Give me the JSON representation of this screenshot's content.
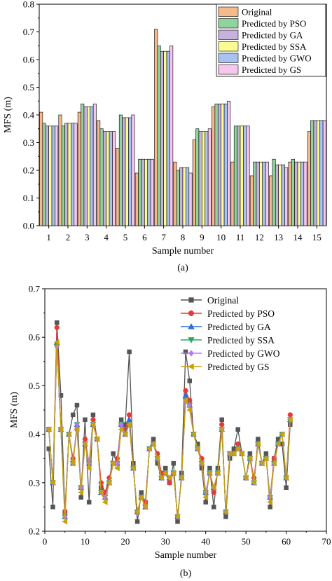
{
  "chart_data": [
    {
      "type": "bar",
      "panel_label": "(a)",
      "xlabel": "Sample number",
      "ylabel": "MFS (m)",
      "ylim": [
        0,
        0.8
      ],
      "yticks": [
        0.0,
        0.1,
        0.2,
        0.3,
        0.4,
        0.5,
        0.6,
        0.7,
        0.8
      ],
      "categories": [
        "1",
        "2",
        "3",
        "4",
        "5",
        "6",
        "7",
        "8",
        "9",
        "10",
        "11",
        "12",
        "13",
        "14",
        "15"
      ],
      "legend_position": "top-right",
      "series": [
        {
          "name": "Original",
          "color": "#f5b98c",
          "values": [
            0.41,
            0.4,
            0.41,
            0.38,
            0.28,
            0.19,
            0.71,
            0.23,
            0.31,
            0.43,
            0.23,
            0.18,
            0.18,
            0.23,
            0.34
          ]
        },
        {
          "name": "Predicted by PSO",
          "color": "#8fd49b",
          "values": [
            0.37,
            0.36,
            0.44,
            0.35,
            0.4,
            0.24,
            0.65,
            0.2,
            0.35,
            0.44,
            0.36,
            0.23,
            0.24,
            0.24,
            0.38
          ]
        },
        {
          "name": "Predicted by GA",
          "color": "#c7b1dd",
          "values": [
            0.36,
            0.37,
            0.43,
            0.34,
            0.39,
            0.24,
            0.63,
            0.21,
            0.34,
            0.44,
            0.36,
            0.23,
            0.22,
            0.23,
            0.38
          ]
        },
        {
          "name": "Predicted by SSA",
          "color": "#fbfb94",
          "values": [
            0.36,
            0.37,
            0.43,
            0.34,
            0.39,
            0.24,
            0.63,
            0.21,
            0.34,
            0.44,
            0.36,
            0.23,
            0.22,
            0.23,
            0.38
          ]
        },
        {
          "name": "Predicted by GWO",
          "color": "#a8c3f2",
          "values": [
            0.36,
            0.37,
            0.43,
            0.34,
            0.39,
            0.24,
            0.63,
            0.21,
            0.34,
            0.44,
            0.36,
            0.23,
            0.22,
            0.23,
            0.38
          ]
        },
        {
          "name": "Predicted by GS",
          "color": "#f7c6ee",
          "values": [
            0.36,
            0.37,
            0.44,
            0.34,
            0.4,
            0.24,
            0.65,
            0.19,
            0.35,
            0.45,
            0.36,
            0.23,
            0.21,
            0.23,
            0.38
          ]
        }
      ]
    },
    {
      "type": "line",
      "panel_label": "(b)",
      "xlabel": "Sample number",
      "ylabel": "MFS (m)",
      "xlim": [
        0,
        70
      ],
      "ylim": [
        0.2,
        0.7
      ],
      "xticks": [
        0,
        10,
        20,
        30,
        40,
        50,
        60,
        70
      ],
      "yticks": [
        0.2,
        0.3,
        0.4,
        0.5,
        0.6,
        0.7
      ],
      "legend_position": "top-right",
      "x": [
        1,
        2,
        3,
        4,
        5,
        6,
        7,
        8,
        9,
        10,
        11,
        12,
        13,
        14,
        15,
        16,
        17,
        18,
        19,
        20,
        21,
        22,
        23,
        24,
        25,
        26,
        27,
        28,
        29,
        30,
        31,
        32,
        33,
        34,
        35,
        36,
        37,
        38,
        39,
        40,
        41,
        42,
        43,
        44,
        45,
        46,
        47,
        48,
        49,
        50,
        51,
        52,
        53,
        54,
        55,
        56,
        57,
        58,
        59,
        60,
        61
      ],
      "series": [
        {
          "name": "Original",
          "color": "#555555",
          "marker": "square",
          "values": [
            0.37,
            0.25,
            0.63,
            0.48,
            0.24,
            0.4,
            0.44,
            0.46,
            0.27,
            0.43,
            0.26,
            0.44,
            0.39,
            0.29,
            0.28,
            0.3,
            0.36,
            0.34,
            0.43,
            0.42,
            0.57,
            0.34,
            0.22,
            0.28,
            0.26,
            0.37,
            0.39,
            0.34,
            0.31,
            0.33,
            0.3,
            0.34,
            0.22,
            0.32,
            0.57,
            0.51,
            0.4,
            0.38,
            0.33,
            0.26,
            0.33,
            0.25,
            0.33,
            0.43,
            0.23,
            0.35,
            0.37,
            0.41,
            0.36,
            0.31,
            0.36,
            0.3,
            0.39,
            0.34,
            0.36,
            0.25,
            0.35,
            0.39,
            0.38,
            0.29,
            0.42
          ]
        },
        {
          "name": "Predicted by PSO",
          "color": "#e8393a",
          "marker": "circle",
          "values": [
            0.41,
            0.3,
            0.62,
            0.41,
            0.24,
            0.4,
            0.35,
            0.41,
            0.29,
            0.39,
            0.34,
            0.43,
            0.39,
            0.3,
            0.28,
            0.31,
            0.34,
            0.35,
            0.42,
            0.41,
            0.44,
            0.33,
            0.24,
            0.27,
            0.26,
            0.37,
            0.38,
            0.36,
            0.32,
            0.32,
            0.3,
            0.32,
            0.23,
            0.31,
            0.49,
            0.47,
            0.4,
            0.37,
            0.35,
            0.28,
            0.32,
            0.28,
            0.32,
            0.42,
            0.24,
            0.36,
            0.36,
            0.38,
            0.36,
            0.31,
            0.35,
            0.31,
            0.38,
            0.34,
            0.35,
            0.27,
            0.35,
            0.38,
            0.4,
            0.31,
            0.44
          ]
        },
        {
          "name": "Predicted by GA",
          "color": "#2b6fd6",
          "marker": "triangle-up",
          "values": [
            0.41,
            0.3,
            0.59,
            0.41,
            0.23,
            0.4,
            0.34,
            0.42,
            0.29,
            0.38,
            0.34,
            0.42,
            0.39,
            0.28,
            0.27,
            0.3,
            0.34,
            0.34,
            0.42,
            0.4,
            0.43,
            0.33,
            0.24,
            0.27,
            0.25,
            0.37,
            0.38,
            0.35,
            0.31,
            0.32,
            0.31,
            0.32,
            0.23,
            0.31,
            0.48,
            0.46,
            0.4,
            0.37,
            0.34,
            0.28,
            0.32,
            0.29,
            0.32,
            0.41,
            0.24,
            0.36,
            0.36,
            0.37,
            0.36,
            0.31,
            0.35,
            0.3,
            0.38,
            0.34,
            0.35,
            0.27,
            0.34,
            0.38,
            0.4,
            0.31,
            0.43
          ]
        },
        {
          "name": "Predicted by SSA",
          "color": "#28a85a",
          "marker": "triangle-down",
          "values": [
            0.41,
            0.3,
            0.58,
            0.41,
            0.23,
            0.4,
            0.34,
            0.42,
            0.29,
            0.38,
            0.34,
            0.42,
            0.39,
            0.28,
            0.27,
            0.3,
            0.34,
            0.34,
            0.42,
            0.4,
            0.42,
            0.33,
            0.24,
            0.27,
            0.25,
            0.37,
            0.38,
            0.35,
            0.31,
            0.32,
            0.31,
            0.32,
            0.23,
            0.31,
            0.47,
            0.46,
            0.4,
            0.37,
            0.34,
            0.28,
            0.32,
            0.29,
            0.32,
            0.41,
            0.24,
            0.36,
            0.36,
            0.37,
            0.36,
            0.31,
            0.35,
            0.3,
            0.38,
            0.34,
            0.35,
            0.27,
            0.34,
            0.38,
            0.4,
            0.31,
            0.43
          ]
        },
        {
          "name": "Predicted by GWO",
          "color": "#b57bf0",
          "marker": "diamond",
          "values": [
            0.41,
            0.3,
            0.58,
            0.41,
            0.23,
            0.4,
            0.34,
            0.42,
            0.29,
            0.38,
            0.34,
            0.42,
            0.39,
            0.28,
            0.27,
            0.3,
            0.34,
            0.34,
            0.42,
            0.4,
            0.42,
            0.33,
            0.24,
            0.27,
            0.25,
            0.37,
            0.38,
            0.35,
            0.31,
            0.32,
            0.31,
            0.32,
            0.23,
            0.31,
            0.47,
            0.46,
            0.4,
            0.37,
            0.34,
            0.28,
            0.32,
            0.29,
            0.32,
            0.41,
            0.24,
            0.36,
            0.36,
            0.37,
            0.36,
            0.31,
            0.35,
            0.3,
            0.38,
            0.34,
            0.35,
            0.27,
            0.34,
            0.38,
            0.4,
            0.31,
            0.43
          ]
        },
        {
          "name": "Predicted by GS",
          "color": "#c9a10a",
          "marker": "triangle-left",
          "values": [
            0.41,
            0.3,
            0.59,
            0.41,
            0.22,
            0.4,
            0.34,
            0.41,
            0.28,
            0.38,
            0.33,
            0.42,
            0.39,
            0.28,
            0.26,
            0.3,
            0.34,
            0.33,
            0.41,
            0.4,
            0.42,
            0.33,
            0.24,
            0.27,
            0.25,
            0.37,
            0.38,
            0.35,
            0.31,
            0.32,
            0.31,
            0.32,
            0.23,
            0.31,
            0.47,
            0.45,
            0.4,
            0.37,
            0.34,
            0.27,
            0.32,
            0.29,
            0.32,
            0.41,
            0.24,
            0.36,
            0.36,
            0.37,
            0.36,
            0.31,
            0.35,
            0.3,
            0.38,
            0.34,
            0.35,
            0.26,
            0.34,
            0.38,
            0.4,
            0.31,
            0.43
          ]
        }
      ]
    }
  ]
}
